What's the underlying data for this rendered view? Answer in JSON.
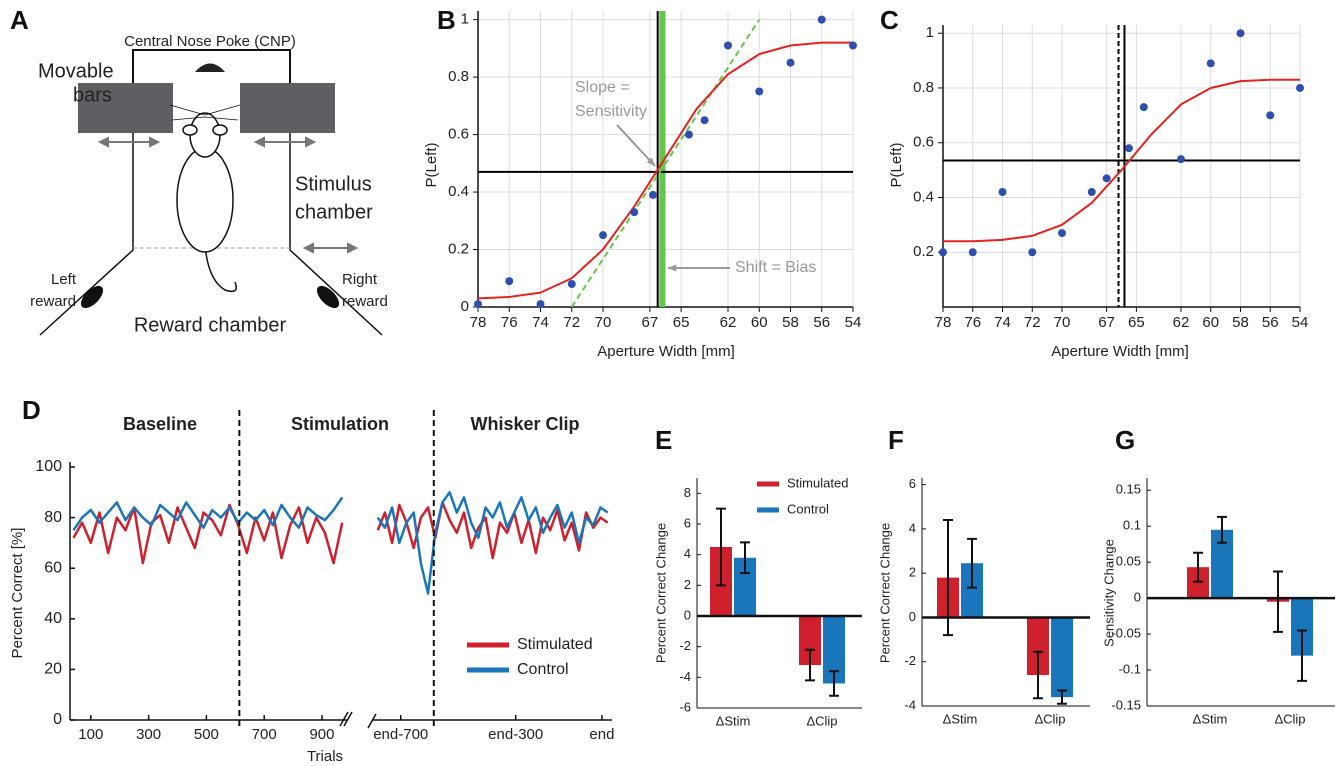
{
  "panel_a": {
    "label": "A",
    "cnp": "Central Nose Poke (CNP)",
    "movable_bars": [
      "Movable",
      "bars"
    ],
    "stimulus_chamber": [
      "Stimulus",
      "chamber"
    ],
    "left_reward": [
      "Left",
      "reward"
    ],
    "right_reward": [
      "Right",
      "reward"
    ],
    "reward_chamber": "Reward chamber"
  },
  "chart_data": [
    {
      "type": "scatter",
      "panel_label": "B",
      "x_label": "Aperture Width [mm]",
      "y_label": "P(Left)",
      "xlim": [
        78,
        54
      ],
      "xticks": [
        78,
        76,
        74,
        72,
        70,
        67,
        65,
        62,
        60,
        58,
        56,
        54
      ],
      "ylim": [
        0,
        1.03
      ],
      "yticks": [
        0,
        0.2,
        0.4,
        0.6,
        0.8,
        1
      ],
      "grid": true,
      "color": "#2f4fae",
      "x": [
        78,
        76,
        74,
        72,
        70,
        68,
        66.8,
        64.5,
        63.5,
        62,
        60,
        58,
        56,
        54
      ],
      "values": [
        0.01,
        0.09,
        0.01,
        0.08,
        0.25,
        0.33,
        0.39,
        0.6,
        0.65,
        0.91,
        0.75,
        0.85,
        1,
        0.91
      ],
      "fit": {
        "color": "#e3231f",
        "x": [
          78,
          76,
          74,
          72,
          70,
          68,
          66,
          64,
          62,
          60,
          58,
          56,
          54
        ],
        "values": [
          0.03,
          0.035,
          0.05,
          0.1,
          0.2,
          0.35,
          0.52,
          0.69,
          0.81,
          0.88,
          0.91,
          0.92,
          0.92
        ]
      },
      "hline": 0.47,
      "vlines": [
        {
          "value": 66.5,
          "style": "solid"
        }
      ],
      "bias_band": [
        66.0,
        66.4
      ],
      "band_color": "#63c54a",
      "slope_line": {
        "color": "#63c54a",
        "x": [
          72,
          60
        ],
        "values": [
          0,
          1
        ]
      },
      "annotations": [
        {
          "lines": [
            "Slope =",
            "Sensitivity"
          ]
        },
        {
          "lines": [
            "Shift = Bias"
          ]
        }
      ]
    },
    {
      "type": "scatter",
      "panel_label": "C",
      "x_label": "Aperture Width [mm]",
      "y_label": "P(Left)",
      "xlim": [
        78,
        54
      ],
      "xticks": [
        78,
        76,
        74,
        72,
        70,
        67,
        65,
        62,
        60,
        58,
        56,
        54
      ],
      "ylim": [
        0,
        1.03
      ],
      "yticks": [
        0.2,
        0.4,
        0.6,
        0.8,
        1
      ],
      "grid": true,
      "color": "#2f4fae",
      "x": [
        78,
        76,
        74,
        72,
        70,
        68,
        67,
        65.5,
        64.5,
        62,
        60,
        58,
        56,
        54
      ],
      "values": [
        0.2,
        0.2,
        0.42,
        0.2,
        0.27,
        0.42,
        0.47,
        0.58,
        0.73,
        0.54,
        0.89,
        1,
        0.7,
        0.8
      ],
      "fit": {
        "color": "#e3231f",
        "x": [
          78,
          76,
          74,
          72,
          70,
          68,
          66,
          64,
          62,
          60,
          58,
          56,
          54
        ],
        "values": [
          0.24,
          0.24,
          0.245,
          0.26,
          0.3,
          0.38,
          0.5,
          0.63,
          0.74,
          0.8,
          0.825,
          0.83,
          0.83
        ]
      },
      "hline": 0.535,
      "vlines": [
        {
          "value": 65.8,
          "style": "solid"
        },
        {
          "value": 66.2,
          "style": "dashed"
        }
      ]
    },
    {
      "type": "line",
      "panel_label": "D",
      "y_label": "Percent Correct [%]",
      "x_label": "Trials",
      "ylim": [
        0,
        100
      ],
      "yticks": [
        0,
        20,
        40,
        60,
        80,
        100
      ],
      "sections": [
        "Baseline",
        "Stimulation",
        "Whisker Clip"
      ],
      "series": [
        {
          "name": "Stimulated",
          "color": "#cf202e"
        },
        {
          "name": "Control",
          "color": "#1b75bb"
        }
      ],
      "panes": [
        {
          "xlim": [
            28,
            990
          ],
          "xticks": [
            100,
            300,
            500,
            700,
            900
          ],
          "divider": 614,
          "x": [
            40,
            70,
            100,
            130,
            160,
            190,
            220,
            250,
            280,
            310,
            340,
            370,
            400,
            430,
            460,
            490,
            520,
            550,
            580,
            610,
            640,
            670,
            700,
            730,
            760,
            790,
            820,
            850,
            880,
            910,
            940,
            970
          ],
          "series_values": [
            [
              72,
              78,
              70,
              82,
              66,
              80,
              75,
              84,
              62,
              78,
              81,
              70,
              84,
              76,
              68,
              82,
              79,
              73,
              85,
              77,
              66,
              80,
              71,
              82,
              64,
              77,
              84,
              70,
              80,
              74,
              62,
              78
            ],
            [
              75,
              80,
              83,
              78,
              82,
              86,
              79,
              84,
              80,
              77,
              85,
              82,
              79,
              86,
              81,
              76,
              83,
              80,
              84,
              78,
              82,
              79,
              83,
              77,
              85,
              80,
              76,
              84,
              81,
              79,
              83,
              88
            ]
          ]
        },
        {
          "xlim": [
            -800,
            35
          ],
          "xticks": [
            {
              "value": -700,
              "label": "end-700"
            },
            {
              "value": -300,
              "label": "end-300"
            },
            {
              "value": 0,
              "label": "end"
            }
          ],
          "divider": -585,
          "x": [
            -780,
            -755,
            -730,
            -705,
            -680,
            -655,
            -630,
            -605,
            -580,
            -555,
            -530,
            -505,
            -480,
            -455,
            -430,
            -405,
            -380,
            -355,
            -330,
            -305,
            -280,
            -255,
            -230,
            -205,
            -180,
            -155,
            -130,
            -105,
            -80,
            -55,
            -30,
            -5,
            20
          ],
          "series_values": [
            [
              75,
              82,
              70,
              85,
              78,
              68,
              80,
              84,
              72,
              86,
              79,
              74,
              82,
              68,
              76,
              80,
              64,
              78,
              74,
              82,
              70,
              79,
              66,
              80,
              75,
              83,
              71,
              78,
              67,
              82,
              76,
              80,
              78
            ],
            [
              80,
              76,
              84,
              70,
              78,
              82,
              62,
              50,
              74,
              86,
              90,
              82,
              88,
              78,
              72,
              84,
              80,
              86,
              76,
              82,
              88,
              79,
              84,
              74,
              80,
              85,
              76,
              82,
              70,
              80,
              77,
              84,
              82
            ]
          ]
        }
      ]
    },
    {
      "type": "bar",
      "panel_label": "E",
      "y_label": "Percent Correct Change",
      "categories": [
        "ΔStim",
        "ΔClip"
      ],
      "ylim": [
        -6,
        9
      ],
      "yticks": [
        -6,
        -4,
        -2,
        0,
        2,
        4,
        6,
        8
      ],
      "series": [
        {
          "name": "Stimulated",
          "color": "#cf202e",
          "values": [
            4.5,
            -3.2
          ],
          "errors": [
            2.5,
            1.0
          ]
        },
        {
          "name": "Control",
          "color": "#1b75bb",
          "values": [
            3.8,
            -4.4
          ],
          "errors": [
            1.0,
            0.8
          ]
        }
      ]
    },
    {
      "type": "bar",
      "panel_label": "F",
      "y_label": "Percent Correct Change",
      "categories": [
        "ΔStim",
        "ΔClip"
      ],
      "ylim": [
        -4,
        6.3
      ],
      "yticks": [
        -4,
        -2,
        0,
        2,
        4,
        6
      ],
      "series": [
        {
          "color": "#cf202e",
          "values": [
            1.8,
            -2.6
          ],
          "errors": [
            2.6,
            1.05
          ]
        },
        {
          "color": "#1b75bb",
          "values": [
            2.45,
            -3.6
          ],
          "errors": [
            1.1,
            0.3
          ]
        }
      ]
    },
    {
      "type": "bar",
      "panel_label": "G",
      "y_label": "Sensitivity Change",
      "categories": [
        "ΔStim",
        "ΔClip"
      ],
      "ylim": [
        -0.15,
        0.167
      ],
      "yticks": [
        -0.15,
        -0.1,
        -0.05,
        0,
        0.05,
        0.1,
        0.15
      ],
      "series": [
        {
          "color": "#cf202e",
          "values": [
            0.043,
            -0.005
          ],
          "errors": [
            0.02,
            0.042
          ]
        },
        {
          "color": "#1b75bb",
          "values": [
            0.095,
            -0.08
          ],
          "errors": [
            0.018,
            0.035
          ]
        }
      ]
    }
  ]
}
